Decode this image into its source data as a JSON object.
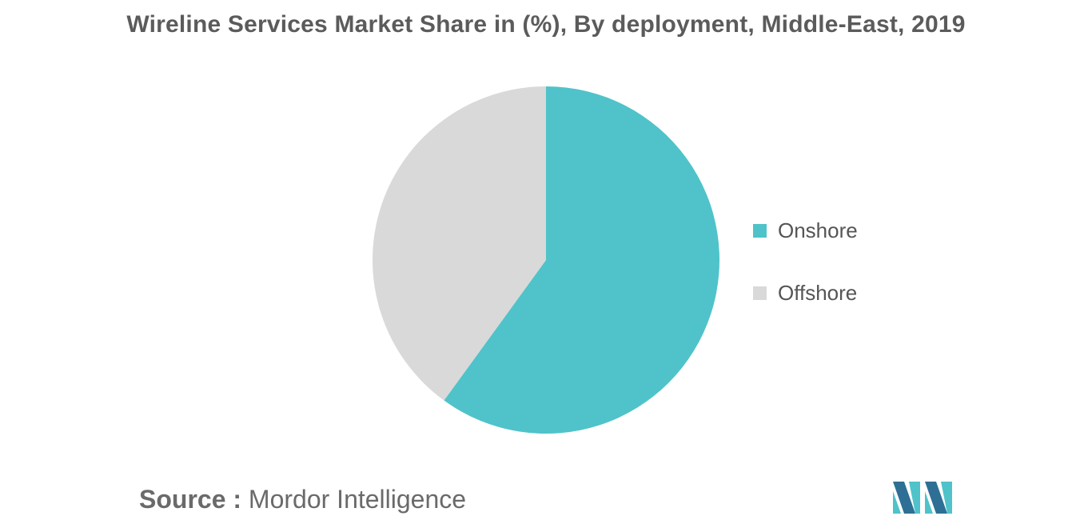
{
  "chart_data": {
    "type": "pie",
    "title": "Wireline Services Market Share in (%), By deployment, Middle-East, 2019",
    "slices": [
      {
        "name": "Onshore",
        "value": 60,
        "color": "#4fc3c9"
      },
      {
        "name": "Offshore",
        "value": 40,
        "color": "#d9d9d9"
      }
    ],
    "start_angle": "12 o'clock, clockwise",
    "legend_position": "right"
  },
  "source": {
    "prefix": "Source :",
    "text": "Mordor Intelligence"
  },
  "logo": {
    "colors": [
      "#2e6f95",
      "#4fc3c9"
    ]
  }
}
